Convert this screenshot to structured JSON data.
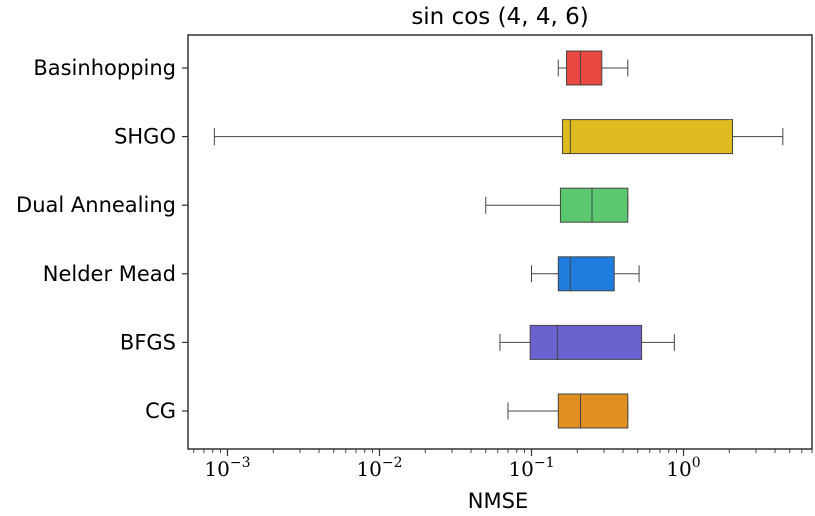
{
  "chart_data": {
    "type": "boxplot",
    "orientation": "horizontal",
    "title": "sin cos (4, 4, 6)",
    "xlabel": "NMSE",
    "ylabel": "",
    "xscale": "log",
    "xlim": [
      0.00055,
      7.0
    ],
    "xticks": [
      {
        "value": 0.001,
        "base": "10",
        "exp": "−3"
      },
      {
        "value": 0.01,
        "base": "10",
        "exp": "−2"
      },
      {
        "value": 0.1,
        "base": "10",
        "exp": "−1"
      },
      {
        "value": 1,
        "base": "10",
        "exp": "0"
      }
    ],
    "categories": [
      "Basinhopping",
      "SHGO",
      "Dual Annealing",
      "Nelder Mead",
      "BFGS",
      "CG"
    ],
    "series": [
      {
        "name": "Basinhopping",
        "whislo": 0.15,
        "q1": 0.17,
        "med": 0.21,
        "q3": 0.29,
        "whishi": 0.43,
        "color": "#e8483f"
      },
      {
        "name": "SHGO",
        "whislo": 0.00082,
        "q1": 0.16,
        "med": 0.18,
        "q3": 2.1,
        "whishi": 4.5,
        "color": "#debb1f"
      },
      {
        "name": "Dual Annealing",
        "whislo": 0.05,
        "q1": 0.155,
        "med": 0.25,
        "q3": 0.43,
        "whishi": 0.43,
        "color": "#5bc86e"
      },
      {
        "name": "Nelder Mead",
        "whislo": 0.1,
        "q1": 0.15,
        "med": 0.18,
        "q3": 0.35,
        "whishi": 0.51,
        "color": "#1f7de0"
      },
      {
        "name": "BFGS",
        "whislo": 0.062,
        "q1": 0.098,
        "med": 0.148,
        "q3": 0.53,
        "whishi": 0.87,
        "color": "#6a62cf"
      },
      {
        "name": "CG",
        "whislo": 0.07,
        "q1": 0.15,
        "med": 0.21,
        "q3": 0.43,
        "whishi": 0.43,
        "color": "#e08f20"
      }
    ]
  }
}
